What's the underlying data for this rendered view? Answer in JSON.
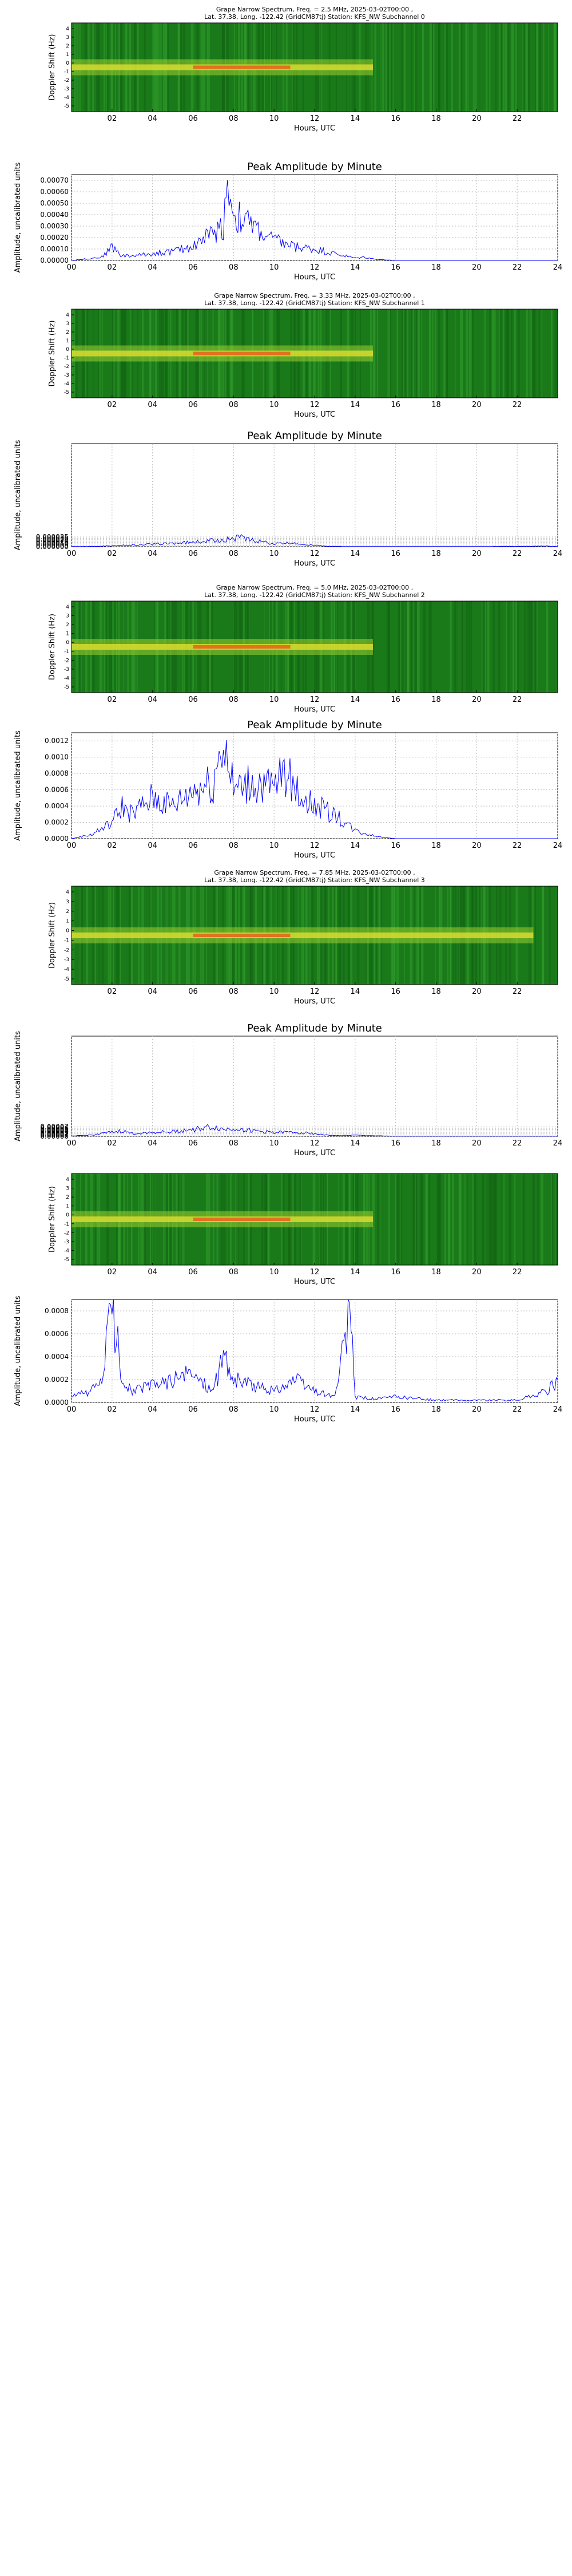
{
  "chart_data": [
    {
      "type": "heatmap",
      "title": "Grape Narrow Spectrum, Freq. = 2.5 MHz, 2025-03-02T00:00 ,",
      "subtitle": "Lat.  37.38, Long. -122.42 (GridCM87tj) Station: KFS_NW Subchannel 0",
      "xlabel": "Hours, UTC",
      "ylabel": "Doppler Shift (Hz)",
      "x_ticks": [
        "02",
        "04",
        "06",
        "08",
        "10",
        "12",
        "14",
        "16",
        "18",
        "20",
        "22"
      ],
      "y_ticks": [
        "4",
        "3",
        "2",
        "1",
        "0",
        "-1",
        "-2",
        "-3",
        "-4",
        "-5"
      ],
      "xlim": [
        0,
        24
      ],
      "ylim": [
        -5,
        5
      ]
    },
    {
      "type": "line",
      "title": "Peak Amplitude by Minute",
      "xlabel": "Hours, UTC",
      "ylabel": "Amplitude, uncalibrated units",
      "xlim": [
        0,
        24
      ],
      "ylim": [
        0,
        0.00075
      ],
      "x_ticks": [
        "00",
        "02",
        "04",
        "06",
        "08",
        "10",
        "12",
        "14",
        "16",
        "18",
        "20",
        "22",
        "24"
      ],
      "y_ticks": [
        "0.00000",
        "0.00010",
        "0.00020",
        "0.00030",
        "0.00040",
        "0.00050",
        "0.00060",
        "0.00070"
      ],
      "series": [
        {
          "color": "#0000ff",
          "x": [
            0,
            1,
            1.5,
            2,
            2.5,
            3,
            4,
            5,
            6,
            6.5,
            7,
            7.5,
            7.7,
            8,
            8.5,
            9,
            9.5,
            10,
            11,
            12,
            13,
            14,
            14.5,
            15,
            16,
            24
          ],
          "y": [
            0,
            2e-05,
            3e-05,
            0.00012,
            4e-05,
            4e-05,
            6e-05,
            8e-05,
            0.00012,
            0.0002,
            0.00024,
            0.0003,
            0.00071,
            0.0004,
            0.00035,
            0.0003,
            0.00022,
            0.00018,
            0.00012,
            0.0001,
            6e-05,
            2e-05,
            3e-05,
            1e-05,
            0,
            0
          ]
        }
      ]
    },
    {
      "type": "heatmap",
      "title": "Grape Narrow Spectrum, Freq. = 3.33 MHz, 2025-03-02T00:00 ,",
      "subtitle": "Lat.  37.38, Long. -122.42 (GridCM87tj) Station: KFS_NW Subchannel 1",
      "xlabel": "Hours, UTC",
      "ylabel": "Doppler Shift (Hz)",
      "x_ticks": [
        "02",
        "04",
        "06",
        "08",
        "10",
        "12",
        "14",
        "16",
        "18",
        "20",
        "22"
      ],
      "y_ticks": [
        "4",
        "3",
        "2",
        "1",
        "0",
        "-1",
        "-2",
        "-3",
        "-4",
        "-5"
      ],
      "xlim": [
        0,
        24
      ],
      "ylim": [
        -5,
        5
      ]
    },
    {
      "type": "line",
      "title": "Peak Amplitude by Minute",
      "xlabel": "Hours, UTC",
      "ylabel": "Amplitude, uncalibrated units",
      "xlim": [
        0,
        24
      ],
      "ylim": [
        0,
        0.00037
      ],
      "x_ticks": [
        "00",
        "02",
        "04",
        "06",
        "08",
        "10",
        "12",
        "14",
        "16",
        "18",
        "20",
        "22",
        "24"
      ],
      "y_ticks": [
        "0.000000",
        "0.000005",
        "0.000010",
        "0.000015",
        "0.000020",
        "0.000025",
        "0.000030",
        "0.000035"
      ],
      "series": [
        {
          "color": "#0000ff",
          "x": [
            0,
            1,
            2,
            3,
            4,
            5,
            6,
            7,
            7.5,
            8,
            8.3,
            8.6,
            9,
            9.5,
            10,
            10.5,
            11,
            11.5,
            12,
            12.5,
            13,
            14,
            20,
            23.5,
            24
          ],
          "y": [
            5e-07,
            1e-06,
            3e-06,
            6e-06,
            9e-06,
            1.2e-05,
            1.6e-05,
            2.2e-05,
            2.6e-05,
            3e-05,
            3.5e-05,
            2.6e-05,
            2.2e-05,
            1.6e-05,
            1e-05,
            1.2e-05,
            1.3e-05,
            8e-06,
            5e-06,
            2e-06,
            1e-06,
            5e-07,
            5e-07,
            2e-06,
            5e-07
          ]
        }
      ]
    },
    {
      "type": "heatmap",
      "title": "Grape Narrow Spectrum, Freq. = 5.0 MHz, 2025-03-02T00:00 ,",
      "subtitle": "Lat.  37.38, Long. -122.42 (GridCM87tj) Station: KFS_NW Subchannel 2",
      "xlabel": "Hours, UTC",
      "ylabel": "Doppler Shift (Hz)",
      "x_ticks": [
        "02",
        "04",
        "06",
        "08",
        "10",
        "12",
        "14",
        "16",
        "18",
        "20",
        "22"
      ],
      "y_ticks": [
        "4",
        "3",
        "2",
        "1",
        "0",
        "-1",
        "-2",
        "-3",
        "-4",
        "-5"
      ],
      "xlim": [
        0,
        24
      ],
      "ylim": [
        -5,
        5
      ]
    },
    {
      "type": "line",
      "title": "Peak Amplitude by Minute",
      "xlabel": "Hours, UTC",
      "ylabel": "Amplitude, uncalibrated units",
      "xlim": [
        0,
        24
      ],
      "ylim": [
        0,
        0.0013
      ],
      "x_ticks": [
        "00",
        "02",
        "04",
        "06",
        "08",
        "10",
        "12",
        "14",
        "16",
        "18",
        "20",
        "22",
        "24"
      ],
      "y_ticks": [
        "0.0000",
        "0.0002",
        "0.0004",
        "0.0006",
        "0.0008",
        "0.0010",
        "0.0012"
      ],
      "series": [
        {
          "color": "#0000ff",
          "x": [
            0,
            1,
            2,
            2.5,
            3,
            4,
            5,
            6,
            7,
            7.5,
            8,
            9,
            10,
            10.5,
            11,
            12,
            13,
            14,
            15,
            16,
            24
          ],
          "y": [
            0,
            5e-05,
            0.0002,
            0.0004,
            0.0003,
            0.0005,
            0.0004,
            0.0006,
            0.0007,
            0.00125,
            0.0006,
            0.0007,
            0.0006,
            0.00085,
            0.0006,
            0.0004,
            0.0003,
            0.0001,
            3e-05,
            0,
            0
          ]
        }
      ]
    },
    {
      "type": "heatmap",
      "title": "Grape Narrow Spectrum, Freq. = 7.85 MHz, 2025-03-02T00:00 ,",
      "subtitle": "Lat.  37.38, Long. -122.42 (GridCM87tj) Station: KFS_NW Subchannel 3",
      "xlabel": "Hours, UTC",
      "ylabel": "Doppler Shift (Hz)",
      "x_ticks": [
        "02",
        "04",
        "06",
        "08",
        "10",
        "12",
        "14",
        "16",
        "18",
        "20",
        "22"
      ],
      "y_ticks": [
        "4",
        "3",
        "2",
        "1",
        "0",
        "-1",
        "-2",
        "-3",
        "-4",
        "-5"
      ],
      "xlim": [
        0,
        24
      ],
      "ylim": [
        -5,
        5
      ]
    },
    {
      "type": "line",
      "title": "Peak Amplitude by Minute",
      "xlabel": "Hours, UTC",
      "ylabel": "Amplitude, uncalibrated units",
      "xlim": [
        0,
        24
      ],
      "ylim": [
        0,
        0.00075
      ],
      "x_ticks": [
        "00",
        "02",
        "04",
        "06",
        "08",
        "10",
        "12",
        "14",
        "16",
        "18",
        "20",
        "22",
        "24"
      ],
      "y_ticks": [
        "0.00000",
        "0.00001",
        "0.00002",
        "0.00003",
        "0.00004",
        "0.00005",
        "0.00006",
        "0.00007"
      ],
      "series": [
        {
          "color": "#0000ff",
          "x": [
            0,
            1,
            2,
            2.5,
            3,
            4,
            5,
            6,
            6.5,
            7,
            7.5,
            8,
            9,
            10,
            11,
            12,
            12.5,
            13,
            14,
            15,
            16,
            24
          ],
          "y": [
            2e-06,
            1e-05,
            3e-05,
            4e-05,
            2e-05,
            3e-05,
            3.5e-05,
            5e-05,
            6e-05,
            7e-05,
            5e-05,
            6e-05,
            4e-05,
            3e-05,
            3e-05,
            2e-05,
            1e-05,
            5e-06,
            8e-06,
            4e-06,
            1e-06,
            1e-06
          ]
        }
      ]
    },
    {
      "type": "heatmap",
      "title": "",
      "subtitle": "",
      "xlabel": "Hours, UTC",
      "ylabel": "Doppler Shift (Hz)",
      "x_ticks": [
        "02",
        "04",
        "06",
        "08",
        "10",
        "12",
        "14",
        "16",
        "18",
        "20",
        "22"
      ],
      "y_ticks": [
        "4",
        "3",
        "2",
        "1",
        "0",
        "-1",
        "-2",
        "-3",
        "-4",
        "-5"
      ],
      "xlim": [
        0,
        24
      ],
      "ylim": [
        -5,
        5
      ]
    },
    {
      "type": "line",
      "title": "",
      "xlabel": "Hours, UTC",
      "ylabel": "Amplitude, uncalibrated units",
      "xlim": [
        0,
        24
      ],
      "ylim": [
        0,
        0.0009
      ],
      "x_ticks": [
        "00",
        "02",
        "04",
        "06",
        "08",
        "10",
        "12",
        "14",
        "16",
        "18",
        "20",
        "22",
        "24"
      ],
      "y_ticks": [
        "0.0000",
        "0.0002",
        "0.0004",
        "0.0006",
        "0.0008"
      ],
      "series": [
        {
          "color": "#0000ff",
          "x": [
            0,
            1,
            1.5,
            2,
            2.5,
            3,
            4,
            5,
            6,
            7,
            7.5,
            8,
            9,
            10,
            11,
            12,
            13,
            13.8,
            14,
            15,
            16,
            18,
            20,
            22,
            23.5,
            24
          ],
          "y": [
            5e-05,
            0.0001,
            0.0002,
            0.00085,
            0.0002,
            0.0001,
            0.00015,
            0.0002,
            0.00025,
            0.0001,
            0.0004,
            0.0002,
            0.00015,
            0.0001,
            0.0002,
            0.0001,
            5e-05,
            0.0008,
            5e-05,
            3e-05,
            5e-05,
            2e-05,
            2e-05,
            2e-05,
            0.0001,
            0.0002
          ]
        }
      ]
    }
  ]
}
